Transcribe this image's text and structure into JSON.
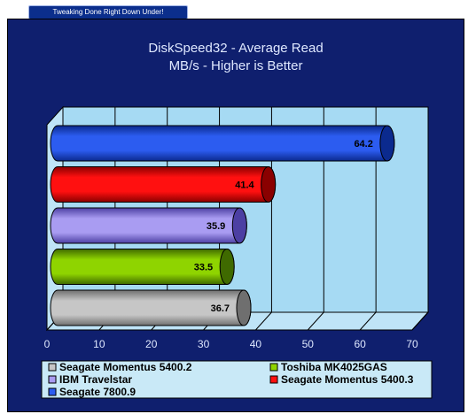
{
  "banner": "Tweaking Done Right Down Under!",
  "chart_data": {
    "type": "bar",
    "orientation": "horizontal",
    "title": [
      "DiskSpeed32 - Average Read",
      "MB/s - Higher is Better"
    ],
    "xlim": [
      0,
      70
    ],
    "xticks": [
      0,
      10,
      20,
      30,
      40,
      50,
      60,
      70
    ],
    "grid": true,
    "legend_position": "bottom",
    "series": [
      {
        "name": "Seagate Momentus 5400.2",
        "value": 36.7,
        "label": "36.7",
        "color": "#c6c6c6",
        "dark": "#6f6f6f"
      },
      {
        "name": "Toshiba MK4025GAS",
        "value": 33.5,
        "label": "33.5",
        "color": "#8fd400",
        "dark": "#3f6a00"
      },
      {
        "name": "IBM Travelstar",
        "value": 35.9,
        "label": "35.9",
        "color": "#a99cf2",
        "dark": "#4c3fa3"
      },
      {
        "name": "Seagate Momentus 5400.3",
        "value": 41.4,
        "label": "41.4",
        "color": "#ff1010",
        "dark": "#8a0000"
      },
      {
        "name": "Seagate 7800.9",
        "value": 64.2,
        "label": "64.2",
        "color": "#2c5cf0",
        "dark": "#0b2a8e"
      }
    ]
  }
}
